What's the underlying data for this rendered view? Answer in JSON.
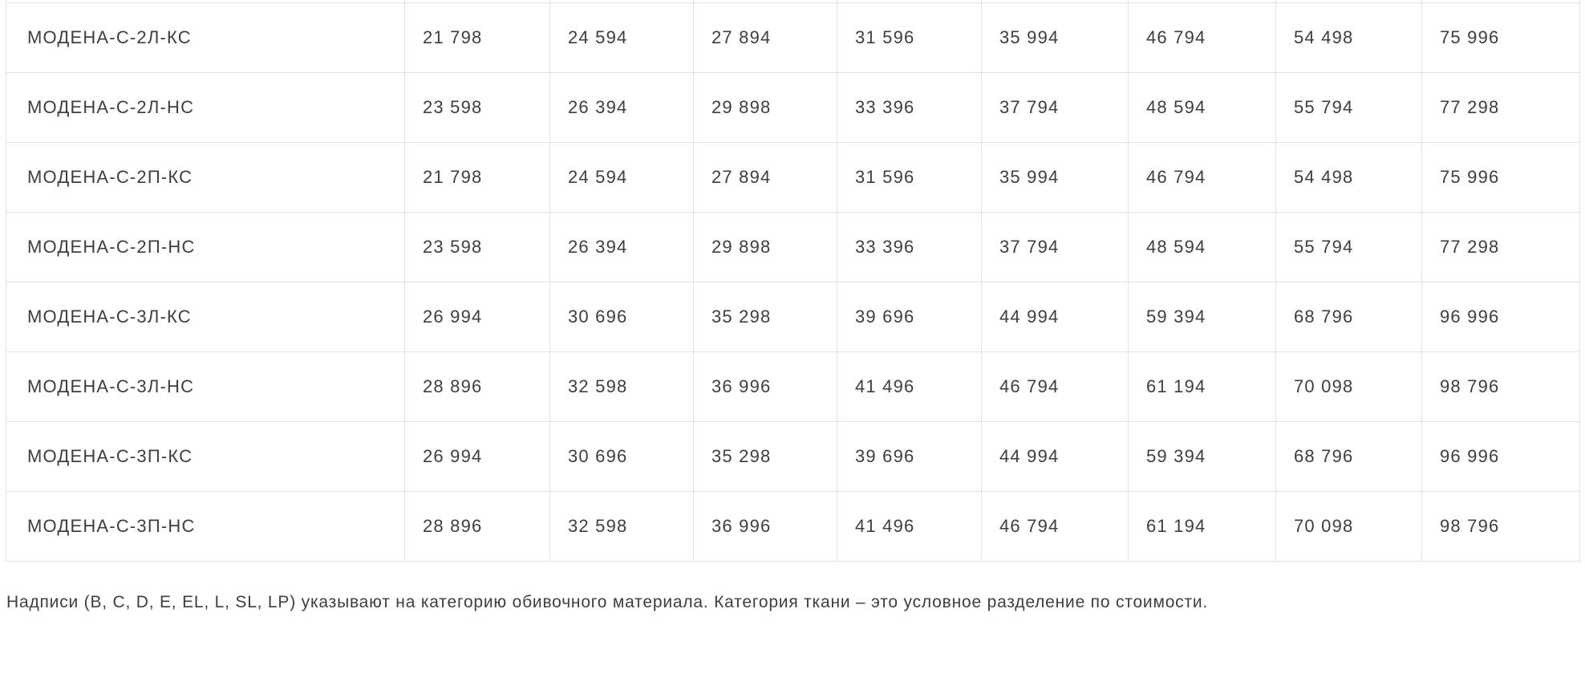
{
  "table": {
    "rows": [
      {
        "name": "МОДЕНА-С-2Л-КС",
        "prices": [
          "21 798",
          "24 594",
          "27 894",
          "31 596",
          "35 994",
          "46 794",
          "54 498",
          "75 996"
        ]
      },
      {
        "name": "МОДЕНА-С-2Л-НС",
        "prices": [
          "23 598",
          "26 394",
          "29 898",
          "33 396",
          "37 794",
          "48 594",
          "55 794",
          "77 298"
        ]
      },
      {
        "name": "МОДЕНА-С-2П-КС",
        "prices": [
          "21 798",
          "24 594",
          "27 894",
          "31 596",
          "35 994",
          "46 794",
          "54 498",
          "75 996"
        ]
      },
      {
        "name": "МОДЕНА-С-2П-НС",
        "prices": [
          "23 598",
          "26 394",
          "29 898",
          "33 396",
          "37 794",
          "48 594",
          "55 794",
          "77 298"
        ]
      },
      {
        "name": "МОДЕНА-С-3Л-КС",
        "prices": [
          "26 994",
          "30 696",
          "35 298",
          "39 696",
          "44 994",
          "59 394",
          "68 796",
          "96 996"
        ]
      },
      {
        "name": "МОДЕНА-С-3Л-НС",
        "prices": [
          "28 896",
          "32 598",
          "36 996",
          "41 496",
          "46 794",
          "61 194",
          "70 098",
          "98 796"
        ]
      },
      {
        "name": "МОДЕНА-С-3П-КС",
        "prices": [
          "26 994",
          "30 696",
          "35 298",
          "39 696",
          "44 994",
          "59 394",
          "68 796",
          "96 996"
        ]
      },
      {
        "name": "МОДЕНА-С-3П-НС",
        "prices": [
          "28 896",
          "32 598",
          "36 996",
          "41 496",
          "46 794",
          "61 194",
          "70 098",
          "98 796"
        ]
      }
    ]
  },
  "note": "Надписи (B, C, D, E, EL, L, SL, LP) указывают на категорию обивочного материала. Категория ткани – это условное разделение по стоимости.",
  "colors": {
    "border": "#e2e2e2",
    "text": "#3d3d43",
    "background": "#ffffff"
  }
}
